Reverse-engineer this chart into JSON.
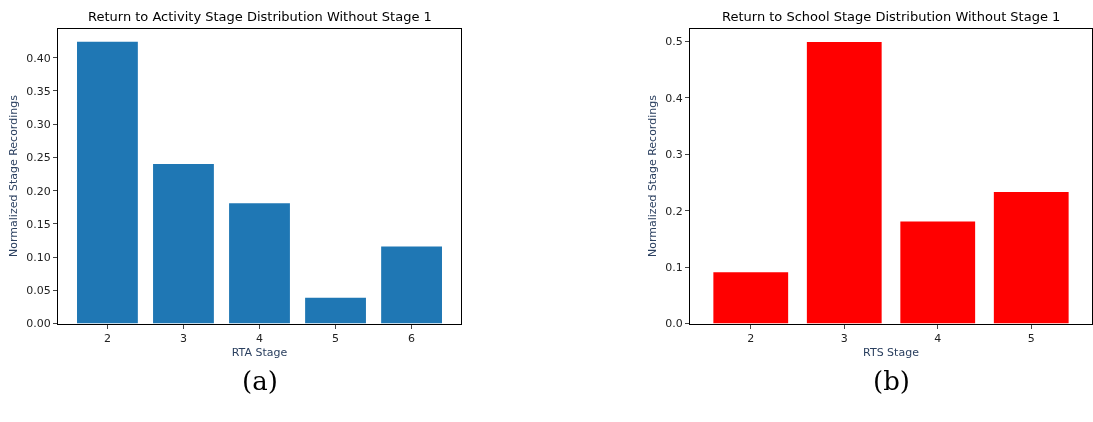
{
  "chart_data": [
    {
      "type": "bar",
      "title": "Return to Activity Stage Distribution Without Stage 1",
      "xlabel": "RTA Stage",
      "ylabel": "Normalized Stage Recordings",
      "categories": [
        "2",
        "3",
        "4",
        "5",
        "6"
      ],
      "values": [
        0.424,
        0.24,
        0.181,
        0.039,
        0.116
      ],
      "color": "#1f77b4",
      "ylim": [
        0,
        0.444
      ],
      "yticks": [
        {
          "value": 0,
          "label": "0.00"
        },
        {
          "value": 0.05,
          "label": "0.05"
        },
        {
          "value": 0.1,
          "label": "0.10"
        },
        {
          "value": 0.15,
          "label": "0.15"
        },
        {
          "value": 0.2,
          "label": "0.20"
        },
        {
          "value": 0.25,
          "label": "0.25"
        },
        {
          "value": 0.3,
          "label": "0.30"
        },
        {
          "value": 0.35,
          "label": "0.35"
        },
        {
          "value": 0.4,
          "label": "0.40"
        }
      ],
      "legend": false,
      "annotations": [
        "(a)"
      ]
    },
    {
      "type": "bar",
      "title": "Return to School Stage Distribution Without Stage 1",
      "xlabel": "RTS Stage",
      "ylabel": "Normalized Stage Recordings",
      "categories": [
        "2",
        "3",
        "4",
        "5"
      ],
      "values": [
        0.091,
        0.499,
        0.181,
        0.233
      ],
      "color": "#ff0000",
      "ylim": [
        0,
        0.523
      ],
      "yticks": [
        {
          "value": 0,
          "label": "0.0"
        },
        {
          "value": 0.1,
          "label": "0.1"
        },
        {
          "value": 0.2,
          "label": "0.2"
        },
        {
          "value": 0.3,
          "label": "0.3"
        },
        {
          "value": 0.4,
          "label": "0.4"
        },
        {
          "value": 0.5,
          "label": "0.5"
        }
      ],
      "legend": false,
      "annotations": [
        "(b)"
      ]
    }
  ]
}
